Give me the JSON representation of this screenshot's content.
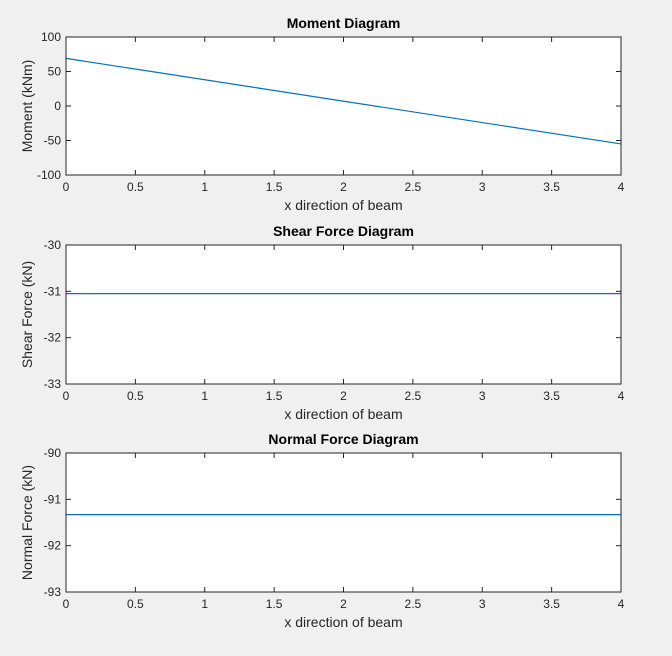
{
  "chart_data": [
    {
      "type": "line",
      "title": "Moment Diagram",
      "xlabel": "x direction of beam",
      "ylabel": "Moment (kNm)",
      "xlim": [
        0,
        4
      ],
      "ylim": [
        -100,
        100
      ],
      "xticks": [
        0,
        0.5,
        1,
        1.5,
        2,
        2.5,
        3,
        3.5,
        4
      ],
      "xtick_labels": [
        "0",
        "0.5",
        "1",
        "1.5",
        "2",
        "2.5",
        "3",
        "3.5",
        "4"
      ],
      "yticks": [
        100,
        50,
        0,
        -50,
        -100
      ],
      "ytick_labels": [
        "100",
        "50",
        "0",
        "-50",
        "-100"
      ],
      "grid": false,
      "series": [
        {
          "color": "#0072bd",
          "x": [
            0,
            4
          ],
          "y": [
            69,
            -55
          ]
        }
      ]
    },
    {
      "type": "line",
      "title": "Shear Force Diagram",
      "xlabel": "x direction of beam",
      "ylabel": "Shear Force (kN)",
      "xlim": [
        0,
        4
      ],
      "ylim": [
        -33,
        -30
      ],
      "xticks": [
        0,
        0.5,
        1,
        1.5,
        2,
        2.5,
        3,
        3.5,
        4
      ],
      "xtick_labels": [
        "0",
        "0.5",
        "1",
        "1.5",
        "2",
        "2.5",
        "3",
        "3.5",
        "4"
      ],
      "yticks": [
        -30,
        -31,
        -32,
        -33
      ],
      "ytick_labels": [
        "-30",
        "-31",
        "-32",
        "-33"
      ],
      "grid": false,
      "series": [
        {
          "color": "#0072bd",
          "x": [
            0,
            4
          ],
          "y": [
            -31.05,
            -31.05
          ]
        }
      ]
    },
    {
      "type": "line",
      "title": "Normal Force Diagram",
      "xlabel": "x direction of beam",
      "ylabel": "Normal Force (kN)",
      "xlim": [
        0,
        4
      ],
      "ylim": [
        -93,
        -90
      ],
      "xticks": [
        0,
        0.5,
        1,
        1.5,
        2,
        2.5,
        3,
        3.5,
        4
      ],
      "xtick_labels": [
        "0",
        "0.5",
        "1",
        "1.5",
        "2",
        "2.5",
        "3",
        "3.5",
        "4"
      ],
      "yticks": [
        -90,
        -91,
        -92,
        -93
      ],
      "ytick_labels": [
        "-90",
        "-91",
        "-92",
        "-93"
      ],
      "grid": false,
      "series": [
        {
          "color": "#0072bd",
          "x": [
            0,
            4
          ],
          "y": [
            -91.33,
            -91.33
          ]
        }
      ]
    }
  ]
}
